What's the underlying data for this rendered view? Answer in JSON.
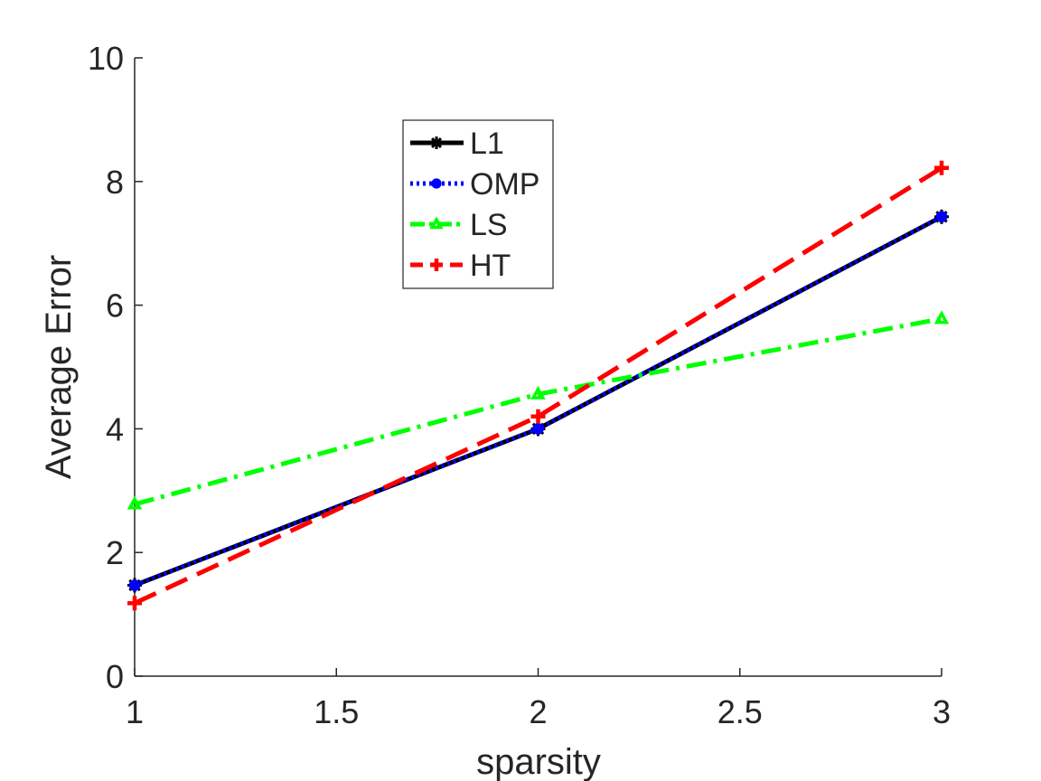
{
  "chart_data": {
    "type": "line",
    "title": "",
    "xlabel": "sparsity",
    "ylabel": "Average Error",
    "x": [
      1,
      2,
      3
    ],
    "xlim": [
      1,
      3
    ],
    "ylim": [
      0,
      10
    ],
    "xticks": [
      1,
      1.5,
      2,
      2.5,
      3
    ],
    "xtick_labels": [
      "1",
      "1.5",
      "2",
      "2.5",
      "3"
    ],
    "yticks": [
      0,
      2,
      4,
      6,
      8,
      10
    ],
    "ytick_labels": [
      "0",
      "2",
      "4",
      "6",
      "8",
      "10"
    ],
    "grid": false,
    "legend_position": "upper-left-center",
    "series": [
      {
        "name": "L1",
        "values": [
          1.47,
          4.0,
          7.43
        ],
        "color": "#000000",
        "line_style": "solid",
        "marker": "asterisk"
      },
      {
        "name": "OMP",
        "values": [
          1.47,
          4.0,
          7.43
        ],
        "color": "#0000ff",
        "line_style": "dotted",
        "marker": "circle"
      },
      {
        "name": "LS",
        "values": [
          2.78,
          4.56,
          5.78
        ],
        "color": "#00ff00",
        "line_style": "dashdot",
        "marker": "triangle"
      },
      {
        "name": "HT",
        "values": [
          1.18,
          4.2,
          8.22
        ],
        "color": "#ff0000",
        "line_style": "dashed",
        "marker": "plus"
      }
    ]
  }
}
